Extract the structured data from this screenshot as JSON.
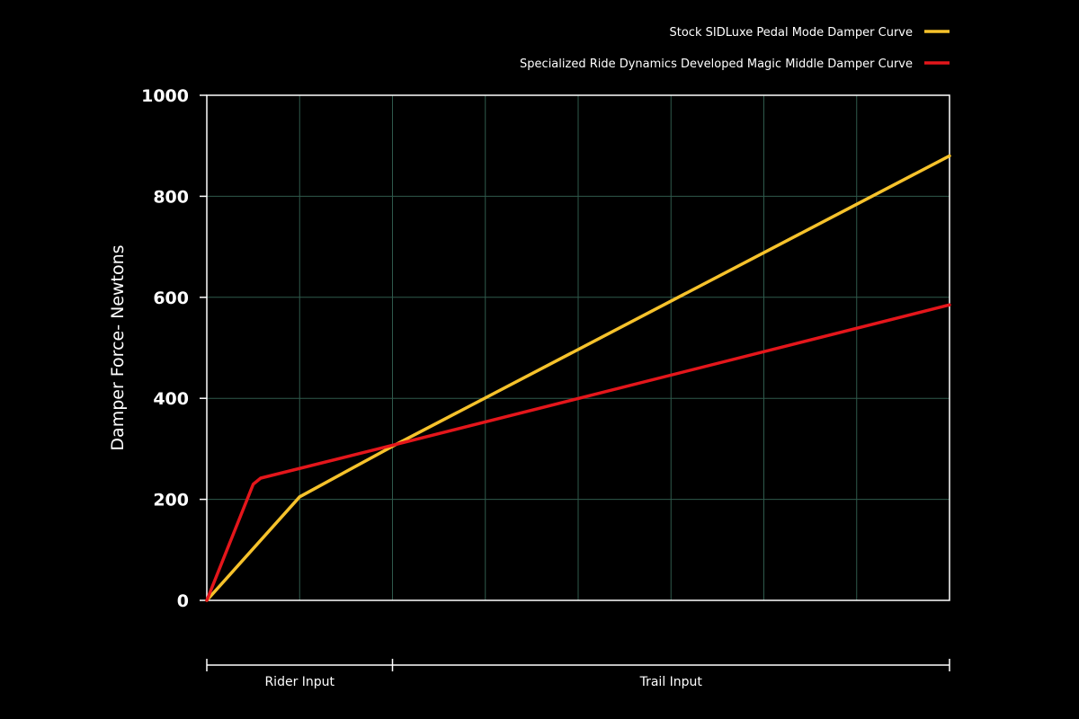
{
  "chart_data": {
    "type": "line",
    "title": "",
    "xlabel": "",
    "ylabel": "Damper Force- Newtons",
    "xlim": [
      0,
      8
    ],
    "ylim": [
      0,
      1000
    ],
    "yticks": [
      "0",
      "200",
      "400",
      "600",
      "800",
      "1000"
    ],
    "x_gridlines": 8,
    "grid": true,
    "legend_position": "top-right",
    "series": [
      {
        "name": "Stock SIDLuxe Pedal Mode Damper Curve",
        "color": "#f6c22b",
        "x": [
          0,
          1,
          2,
          8
        ],
        "y": [
          0,
          205,
          305,
          880
        ]
      },
      {
        "name": "Specialized Ride Dynamics Developed Magic Middle Damper Curve",
        "color": "#e4161b",
        "x": [
          0,
          0.5,
          0.58,
          2,
          8
        ],
        "y": [
          0,
          230,
          242,
          307,
          585
        ]
      }
    ],
    "x_regions": [
      {
        "label": "Rider Input",
        "x_start": 0,
        "x_end": 2
      },
      {
        "label": "Trail Input",
        "x_start": 2,
        "x_end": 8
      }
    ]
  }
}
